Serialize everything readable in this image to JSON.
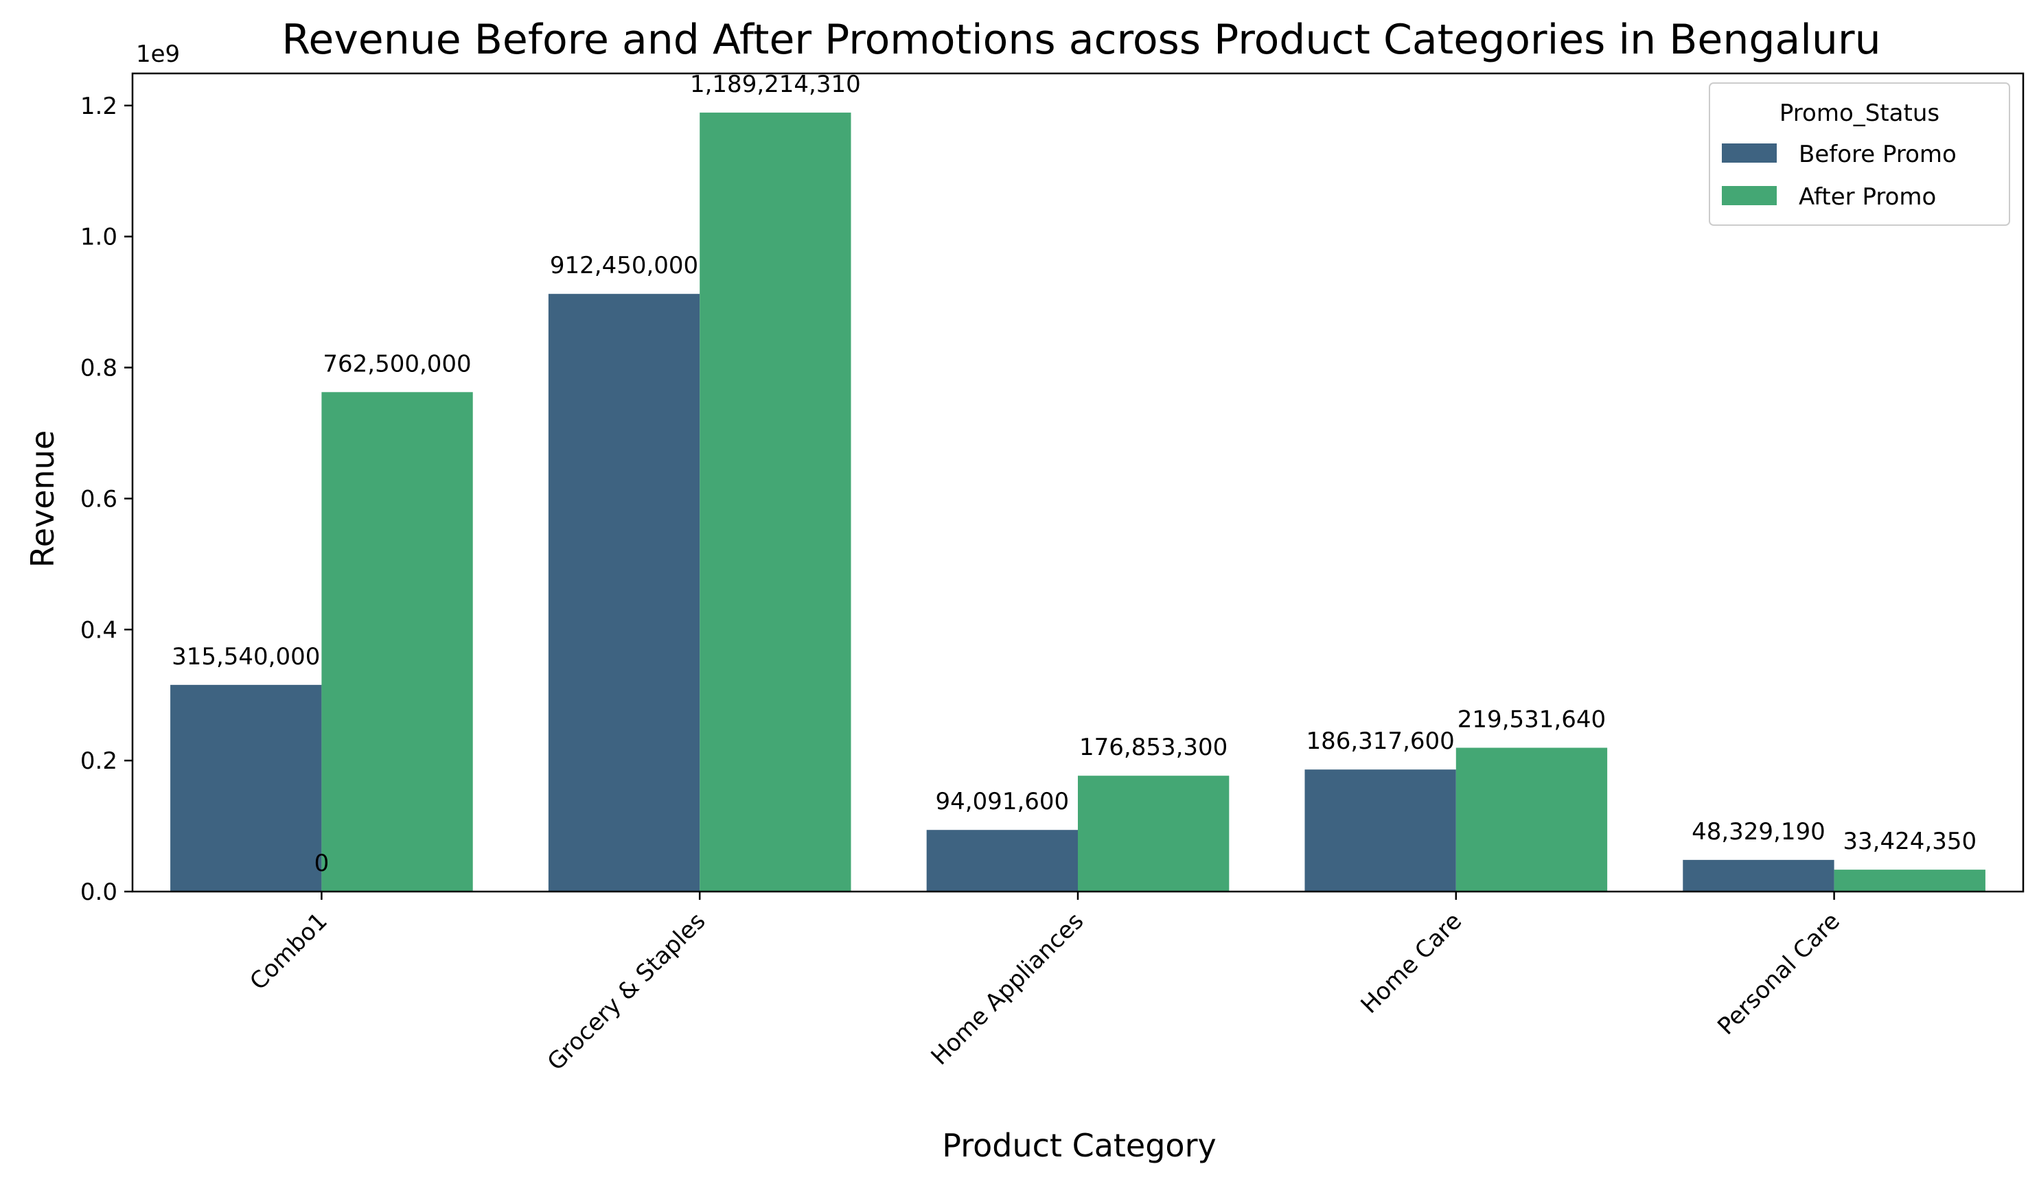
{
  "chart_data": {
    "type": "bar",
    "title": "Revenue Before and After Promotions across Product Categories in Bengaluru",
    "xlabel": "Product Category",
    "ylabel": "Revenue",
    "y_offset_label": "1e9",
    "ylim": [
      0,
      1.249
    ],
    "yticks": [
      0,
      0.2,
      0.4,
      0.6,
      0.8,
      1.0,
      1.2
    ],
    "ytick_labels": [
      "0.0",
      "0.2",
      "0.4",
      "0.6",
      "0.8",
      "1.0",
      "1.2"
    ],
    "grid": false,
    "categories": [
      "Combo1",
      "Grocery & Staples",
      "Home Appliances",
      "Home Care",
      "Personal Care"
    ],
    "series": [
      {
        "name": "Before Promo",
        "color": "#3e6381",
        "values": [
          315540000,
          912450000,
          94091600,
          186317600,
          48329190
        ],
        "labels": [
          "315,540,000",
          "912,450,000",
          "94,091,600",
          "186,317,600",
          "48,329,190"
        ]
      },
      {
        "name": "After Promo",
        "color": "#44a774",
        "values": [
          762500000,
          1189214310,
          176853300,
          219531640,
          33424350
        ],
        "labels": [
          "762,500,000",
          "1,189,214,310",
          "176,853,300",
          "219,531,640",
          "33,424,350"
        ]
      }
    ],
    "extra_annotation": "0",
    "legend": {
      "title": "Promo_Status",
      "placement": "top-right"
    }
  }
}
